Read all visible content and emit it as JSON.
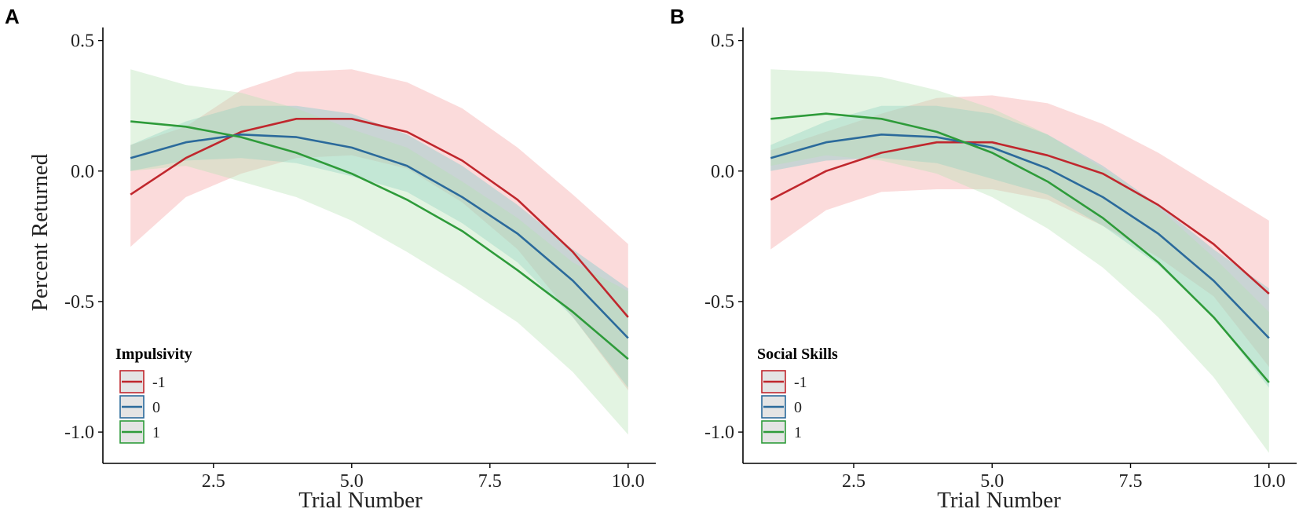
{
  "chart_data": [
    {
      "panel": "A",
      "type": "line",
      "xlabel": "Trial Number",
      "ylabel": "Percent Returned",
      "xlim": [
        0.5,
        10.5
      ],
      "ylim": [
        -1.12,
        0.55
      ],
      "xticks": [
        "2.5",
        "5.0",
        "7.5",
        "10.0"
      ],
      "xtick_values": [
        2.5,
        5.0,
        7.5,
        10.0
      ],
      "yticks": [
        "0.5",
        "0.0",
        "-0.5",
        "-1.0"
      ],
      "ytick_values": [
        0.5,
        0.0,
        -0.5,
        -1.0
      ],
      "legend_title": "Impulsivity",
      "legend_position": "bottom-left",
      "x": [
        1,
        2,
        3,
        4,
        5,
        6,
        7,
        8,
        9,
        10
      ],
      "series": [
        {
          "name": "-1",
          "color": "#c0272d",
          "fill": "#f4a0a0",
          "values": [
            -0.09,
            0.05,
            0.15,
            0.2,
            0.2,
            0.15,
            0.04,
            -0.11,
            -0.31,
            -0.56
          ],
          "lower": [
            -0.29,
            -0.1,
            -0.01,
            0.05,
            0.06,
            0.01,
            -0.12,
            -0.3,
            -0.56,
            -0.84
          ],
          "upper": [
            0.1,
            0.17,
            0.31,
            0.38,
            0.39,
            0.34,
            0.24,
            0.09,
            -0.09,
            -0.28
          ]
        },
        {
          "name": "0",
          "color": "#2b6a9b",
          "fill": "#78c8c8",
          "values": [
            0.05,
            0.11,
            0.14,
            0.13,
            0.09,
            0.02,
            -0.1,
            -0.24,
            -0.42,
            -0.64
          ],
          "lower": [
            0.0,
            0.04,
            0.05,
            0.03,
            -0.02,
            -0.08,
            -0.2,
            -0.35,
            -0.56,
            -0.83
          ],
          "upper": [
            0.1,
            0.19,
            0.25,
            0.25,
            0.22,
            0.14,
            0.02,
            -0.13,
            -0.3,
            -0.45
          ]
        },
        {
          "name": "1",
          "color": "#2e9b3a",
          "fill": "#b5e3b3",
          "values": [
            0.19,
            0.17,
            0.13,
            0.07,
            -0.01,
            -0.11,
            -0.23,
            -0.38,
            -0.54,
            -0.72
          ],
          "lower": [
            0.0,
            0.02,
            -0.04,
            -0.1,
            -0.19,
            -0.31,
            -0.44,
            -0.58,
            -0.77,
            -1.01
          ],
          "upper": [
            0.39,
            0.33,
            0.3,
            0.24,
            0.16,
            0.09,
            -0.04,
            -0.18,
            -0.35,
            -0.46
          ]
        }
      ]
    },
    {
      "panel": "B",
      "type": "line",
      "xlabel": "Trial Number",
      "ylabel": "",
      "xlim": [
        0.5,
        10.5
      ],
      "ylim": [
        -1.12,
        0.55
      ],
      "xticks": [
        "2.5",
        "5.0",
        "7.5",
        "10.0"
      ],
      "xtick_values": [
        2.5,
        5.0,
        7.5,
        10.0
      ],
      "yticks": [
        "0.5",
        "0.0",
        "-0.5",
        "-1.0"
      ],
      "ytick_values": [
        0.5,
        0.0,
        -0.5,
        -1.0
      ],
      "legend_title": "Social Skills",
      "legend_position": "bottom-left",
      "x": [
        1,
        2,
        3,
        4,
        5,
        6,
        7,
        8,
        9,
        10
      ],
      "series": [
        {
          "name": "-1",
          "color": "#c0272d",
          "fill": "#f4a0a0",
          "values": [
            -0.11,
            0.0,
            0.07,
            0.11,
            0.11,
            0.06,
            -0.01,
            -0.13,
            -0.28,
            -0.47
          ],
          "lower": [
            -0.3,
            -0.15,
            -0.08,
            -0.07,
            -0.07,
            -0.11,
            -0.21,
            -0.33,
            -0.48,
            -0.75
          ],
          "upper": [
            0.08,
            0.15,
            0.22,
            0.28,
            0.29,
            0.26,
            0.18,
            0.07,
            -0.06,
            -0.19
          ]
        },
        {
          "name": "0",
          "color": "#2b6a9b",
          "fill": "#78c8c8",
          "values": [
            0.05,
            0.11,
            0.14,
            0.13,
            0.09,
            0.01,
            -0.1,
            -0.24,
            -0.42,
            -0.64
          ],
          "lower": [
            0.0,
            0.04,
            0.05,
            0.03,
            -0.03,
            -0.09,
            -0.21,
            -0.36,
            -0.56,
            -0.83
          ],
          "upper": [
            0.1,
            0.19,
            0.25,
            0.25,
            0.22,
            0.14,
            0.02,
            -0.13,
            -0.3,
            -0.45
          ]
        },
        {
          "name": "1",
          "color": "#2e9b3a",
          "fill": "#b5e3b3",
          "values": [
            0.2,
            0.22,
            0.2,
            0.15,
            0.07,
            -0.04,
            -0.18,
            -0.35,
            -0.56,
            -0.81
          ],
          "lower": [
            0.02,
            0.06,
            0.04,
            -0.01,
            -0.1,
            -0.22,
            -0.37,
            -0.56,
            -0.79,
            -1.08
          ],
          "upper": [
            0.39,
            0.38,
            0.36,
            0.31,
            0.24,
            0.14,
            0.01,
            -0.14,
            -0.33,
            -0.54
          ]
        }
      ]
    }
  ]
}
